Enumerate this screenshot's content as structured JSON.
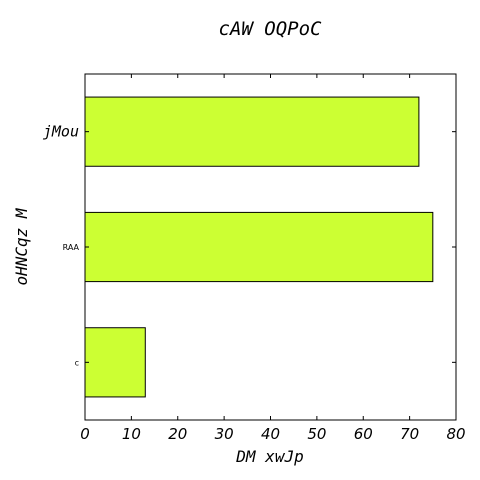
{
  "chart_data": {
    "type": "bar",
    "orientation": "horizontal",
    "title": "cAW OQPoC",
    "xlabel": "DM  xwJp",
    "ylabel": "oHNCqz M",
    "categories": [
      "c",
      "RAA",
      "jMou"
    ],
    "values": [
      13,
      75,
      72
    ],
    "xlim": [
      0,
      80
    ],
    "xticks": [
      0,
      10,
      20,
      30,
      40,
      50,
      60,
      70,
      80
    ],
    "grid": false,
    "bar_color": "#ccff33",
    "edge_color": "#000000"
  }
}
